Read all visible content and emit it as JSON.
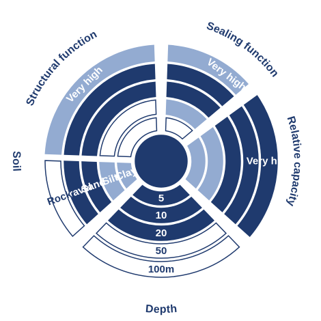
{
  "colors": {
    "dark": "#1f3a6e",
    "light": "#93abd1",
    "white": "#ffffff"
  },
  "center": {
    "fill": "dark"
  },
  "sectors": [
    {
      "id": "structural",
      "title": "Structural function",
      "bands": [
        {
          "fill": "white"
        },
        {
          "fill": "white"
        },
        {
          "fill": "dark"
        },
        {
          "fill": "dark"
        },
        {
          "fill": "light",
          "label": "Very high"
        }
      ]
    },
    {
      "id": "sealing",
      "title": "Sealing function",
      "bands": [
        {
          "fill": "white"
        },
        {
          "fill": "light"
        },
        {
          "fill": "dark"
        },
        {
          "fill": "dark"
        },
        {
          "fill": "light",
          "label": "Very high"
        }
      ]
    },
    {
      "id": "capacity",
      "title": "Relative capacity",
      "bands": [
        {
          "fill": "light"
        },
        {
          "fill": "light"
        },
        {
          "fill": "dark"
        },
        {
          "fill": "dark"
        },
        {
          "fill": "dark",
          "label": "Very high"
        }
      ]
    },
    {
      "id": "depth",
      "title": "Depth",
      "bands": [
        {
          "fill": "dark",
          "label": "5"
        },
        {
          "fill": "dark",
          "label": "10"
        },
        {
          "fill": "dark",
          "label": "20"
        },
        {
          "fill": "white",
          "label": "50"
        },
        {
          "fill": "white",
          "label": "100m"
        }
      ]
    },
    {
      "id": "soil",
      "title": "Soil",
      "bands": [
        {
          "fill": "light",
          "label": "Clay"
        },
        {
          "fill": "light",
          "label": "Silt"
        },
        {
          "fill": "dark",
          "label": "Sand"
        },
        {
          "fill": "dark",
          "label": "Gravel"
        },
        {
          "fill": "white",
          "label": "Rock"
        }
      ]
    }
  ]
}
